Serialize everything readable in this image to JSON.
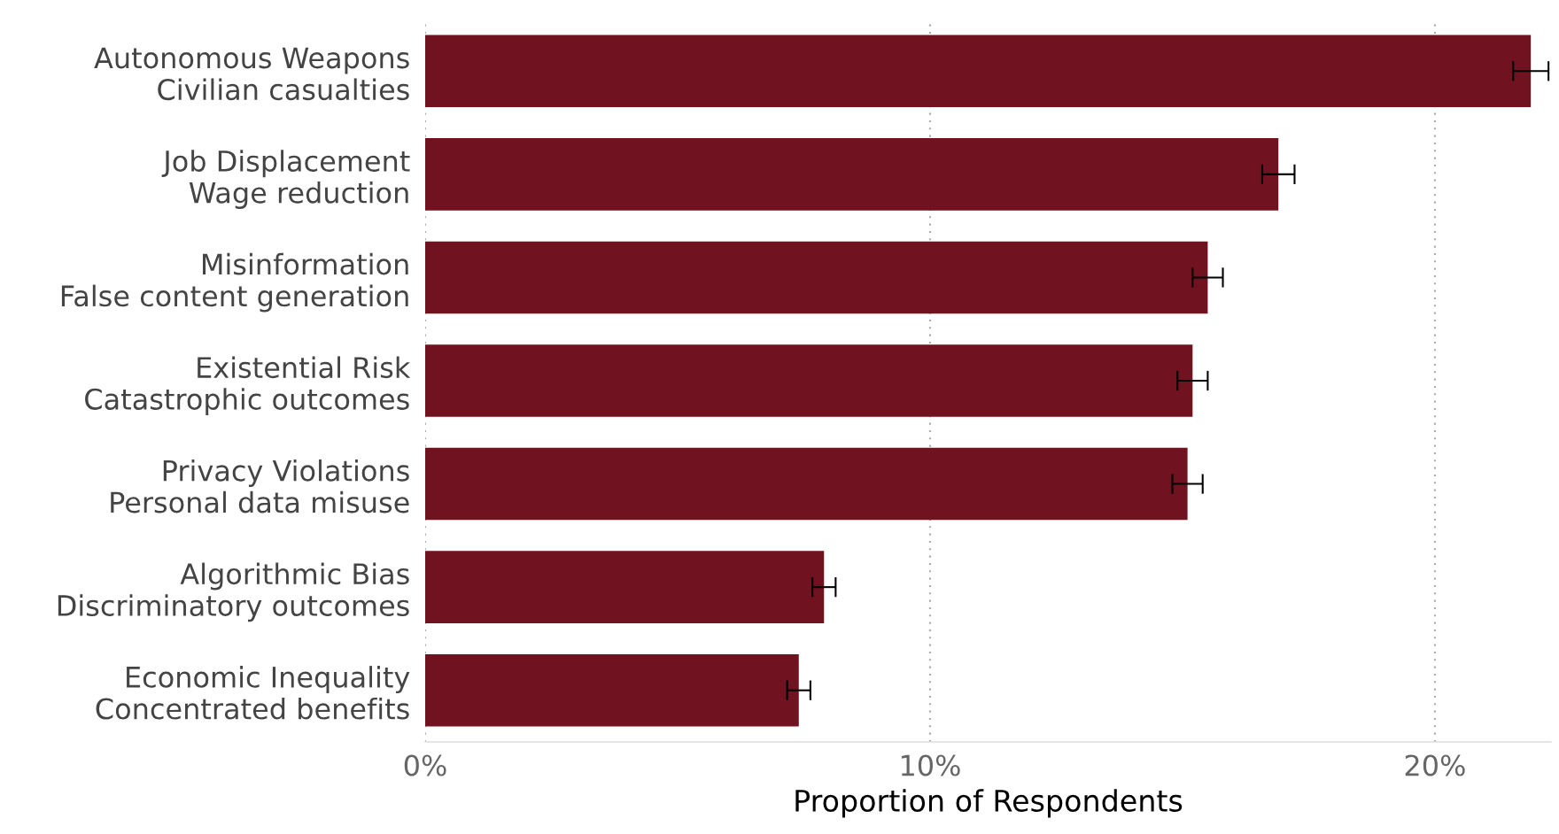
{
  "chart_data": {
    "type": "bar",
    "orientation": "horizontal",
    "xlabel": "Proportion of Respondents",
    "categories": [
      "Autonomous Weapons\nCivilian casualties",
      "Job Displacement\nWage reduction",
      "Misinformation\nFalse content generation",
      "Existential Risk\nCatastrophic outcomes",
      "Privacy Violations\nPersonal data misuse",
      "Algorithmic Bias\nDiscriminatory outcomes",
      "Economic Inequality\nConcentrated benefits"
    ],
    "values": [
      21.9,
      16.9,
      15.5,
      15.2,
      15.1,
      7.9,
      7.4
    ],
    "errors": [
      0.35,
      0.32,
      0.3,
      0.3,
      0.3,
      0.23,
      0.23
    ],
    "color": "#70121f",
    "xlim": [
      0,
      22.3
    ],
    "xticks": [
      {
        "value": 0,
        "label": "0%"
      },
      {
        "value": 10,
        "label": "10%"
      },
      {
        "value": 20,
        "label": "20%"
      }
    ],
    "grid": "x",
    "legend": false
  }
}
